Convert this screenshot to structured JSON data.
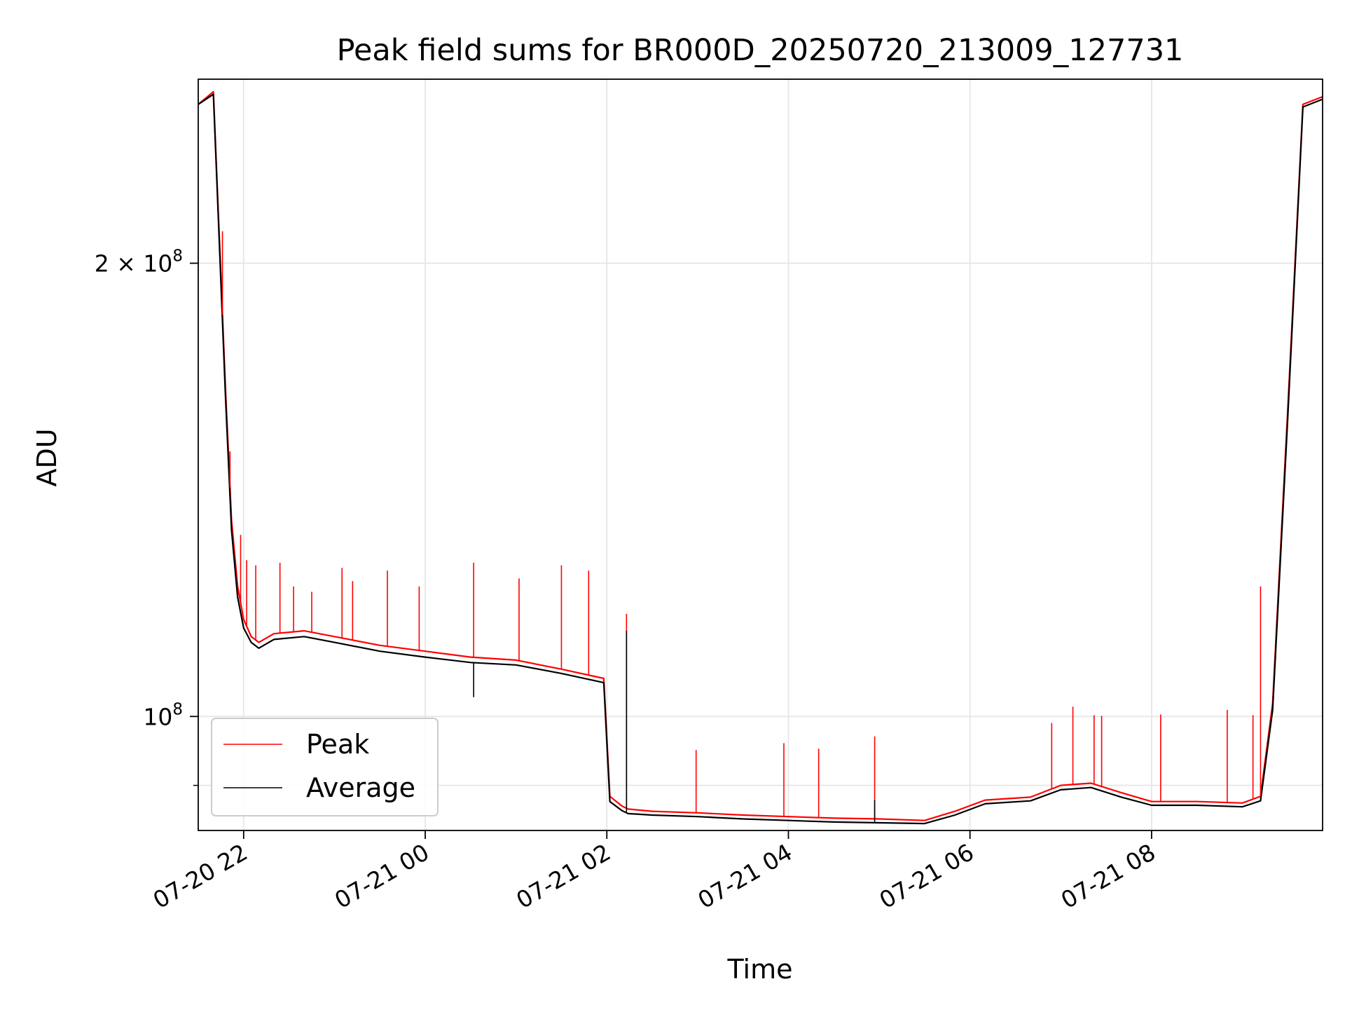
{
  "chart_data": {
    "type": "line",
    "title": "Peak field sums for BR000D_20250720_213009_127731",
    "xlabel": "Time",
    "ylabel": "ADU",
    "y_scale": "log",
    "x_range": [
      "2025-07-20 21:30",
      "2025-07-21 09:53"
    ],
    "ylim": [
      84000000,
      265000000
    ],
    "x_ticks": [
      {
        "value": "2025-07-20 22:00",
        "label": "07-20 22"
      },
      {
        "value": "2025-07-21 00:00",
        "label": "07-21 00"
      },
      {
        "value": "2025-07-21 02:00",
        "label": "07-21 02"
      },
      {
        "value": "2025-07-21 04:00",
        "label": "07-21 04"
      },
      {
        "value": "2025-07-21 06:00",
        "label": "07-21 06"
      },
      {
        "value": "2025-07-21 08:00",
        "label": "07-21 08"
      }
    ],
    "y_ticks": [
      {
        "value": 100000000,
        "label": "10",
        "sup": "8"
      },
      {
        "value": 200000000,
        "label": "2 × 10",
        "sup": "8"
      }
    ],
    "y_minor_ticks": [
      90000000,
      300000000
    ],
    "grid": true,
    "legend_position": "lower-left",
    "series": [
      {
        "name": "Peak",
        "color": "#ff0000",
        "x": [
          "2025-07-20 21:30",
          "2025-07-20 21:40",
          "2025-07-20 21:48",
          "2025-07-20 21:52",
          "2025-07-20 21:56",
          "2025-07-20 22:00",
          "2025-07-20 22:05",
          "2025-07-20 22:10",
          "2025-07-20 22:20",
          "2025-07-20 22:40",
          "2025-07-20 23:00",
          "2025-07-20 23:30",
          "2025-07-21 00:00",
          "2025-07-21 00:30",
          "2025-07-21 01:00",
          "2025-07-21 01:30",
          "2025-07-21 01:58",
          "2025-07-21 02:02",
          "2025-07-21 02:10",
          "2025-07-21 02:14",
          "2025-07-21 02:30",
          "2025-07-21 03:00",
          "2025-07-21 03:30",
          "2025-07-21 04:00",
          "2025-07-21 04:30",
          "2025-07-21 05:00",
          "2025-07-21 05:30",
          "2025-07-21 05:50",
          "2025-07-21 06:10",
          "2025-07-21 06:40",
          "2025-07-21 07:00",
          "2025-07-21 07:20",
          "2025-07-21 07:40",
          "2025-07-21 08:00",
          "2025-07-21 08:30",
          "2025-07-21 09:00",
          "2025-07-21 09:12",
          "2025-07-21 09:20",
          "2025-07-21 09:30",
          "2025-07-21 09:40",
          "2025-07-21 09:53"
        ],
        "values": [
          255000000,
          260000000,
          165000000,
          135000000,
          122000000,
          116000000,
          113000000,
          112000000,
          113500000,
          114000000,
          113000000,
          111500000,
          110500000,
          109500000,
          109000000,
          107500000,
          106000000,
          88500000,
          87200000,
          86800000,
          86500000,
          86300000,
          86000000,
          85800000,
          85600000,
          85500000,
          85300000,
          86500000,
          88000000,
          88400000,
          90000000,
          90300000,
          89000000,
          87800000,
          87800000,
          87600000,
          88500000,
          102000000,
          160000000,
          255000000,
          258000000
        ]
      },
      {
        "name": "Average",
        "color": "#000000",
        "x": [
          "2025-07-20 21:30",
          "2025-07-20 21:40",
          "2025-07-20 21:48",
          "2025-07-20 21:52",
          "2025-07-20 21:56",
          "2025-07-20 22:00",
          "2025-07-20 22:05",
          "2025-07-20 22:10",
          "2025-07-20 22:20",
          "2025-07-20 22:40",
          "2025-07-20 23:00",
          "2025-07-20 23:30",
          "2025-07-21 00:00",
          "2025-07-21 00:30",
          "2025-07-21 01:00",
          "2025-07-21 01:30",
          "2025-07-21 01:58",
          "2025-07-21 02:02",
          "2025-07-21 02:10",
          "2025-07-21 02:14",
          "2025-07-21 02:30",
          "2025-07-21 03:00",
          "2025-07-21 03:30",
          "2025-07-21 04:00",
          "2025-07-21 04:30",
          "2025-07-21 05:00",
          "2025-07-21 05:30",
          "2025-07-21 05:50",
          "2025-07-21 06:10",
          "2025-07-21 06:40",
          "2025-07-21 07:00",
          "2025-07-21 07:20",
          "2025-07-21 07:40",
          "2025-07-21 08:00",
          "2025-07-21 08:30",
          "2025-07-21 09:00",
          "2025-07-21 09:12",
          "2025-07-21 09:20",
          "2025-07-21 09:30",
          "2025-07-21 09:40",
          "2025-07-21 09:53"
        ],
        "values": [
          255000000,
          259000000,
          163000000,
          133000000,
          120000000,
          114500000,
          112000000,
          111000000,
          112500000,
          113000000,
          112000000,
          110500000,
          109500000,
          108600000,
          108200000,
          106800000,
          105300000,
          87800000,
          86600000,
          86200000,
          86000000,
          85800000,
          85500000,
          85300000,
          85100000,
          85000000,
          84900000,
          86000000,
          87500000,
          87900000,
          89400000,
          89700000,
          88400000,
          87300000,
          87300000,
          87100000,
          87900000,
          101000000,
          158000000,
          254000000,
          257000000
        ]
      }
    ],
    "spikes": [
      {
        "series": "Peak",
        "x": [
          "2025-07-20 21:46",
          "2025-07-20 21:51",
          "2025-07-20 21:58",
          "2025-07-20 22:02",
          "2025-07-20 22:08",
          "2025-07-20 22:24",
          "2025-07-20 22:33",
          "2025-07-20 22:45",
          "2025-07-20 23:05",
          "2025-07-20 23:12",
          "2025-07-20 23:35",
          "2025-07-20 23:56",
          "2025-07-21 00:32",
          "2025-07-21 01:02",
          "2025-07-21 01:30",
          "2025-07-21 01:48",
          "2025-07-21 02:13",
          "2025-07-21 02:59",
          "2025-07-21 03:57",
          "2025-07-21 04:20",
          "2025-07-21 04:57",
          "2025-07-21 06:54",
          "2025-07-21 07:08",
          "2025-07-21 07:22",
          "2025-07-21 07:27",
          "2025-07-21 08:06",
          "2025-07-21 08:50",
          "2025-07-21 09:07",
          "2025-07-21 09:12"
        ],
        "values": [
          210000000,
          150000000,
          132000000,
          127000000,
          126000000,
          126500000,
          122000000,
          121000000,
          125500000,
          123000000,
          125000000,
          122000000,
          126500000,
          123500000,
          126000000,
          125000000,
          117000000,
          95000000,
          96000000,
          95200000,
          97000000,
          99000000,
          101500000,
          100200000,
          100100000,
          100300000,
          101000000,
          100200000,
          122000000
        ]
      },
      {
        "series": "Average",
        "x": [
          "2025-07-21 00:32",
          "2025-07-21 02:13",
          "2025-07-21 04:57"
        ],
        "values": [
          103000000,
          114000000,
          88000000
        ]
      }
    ]
  }
}
